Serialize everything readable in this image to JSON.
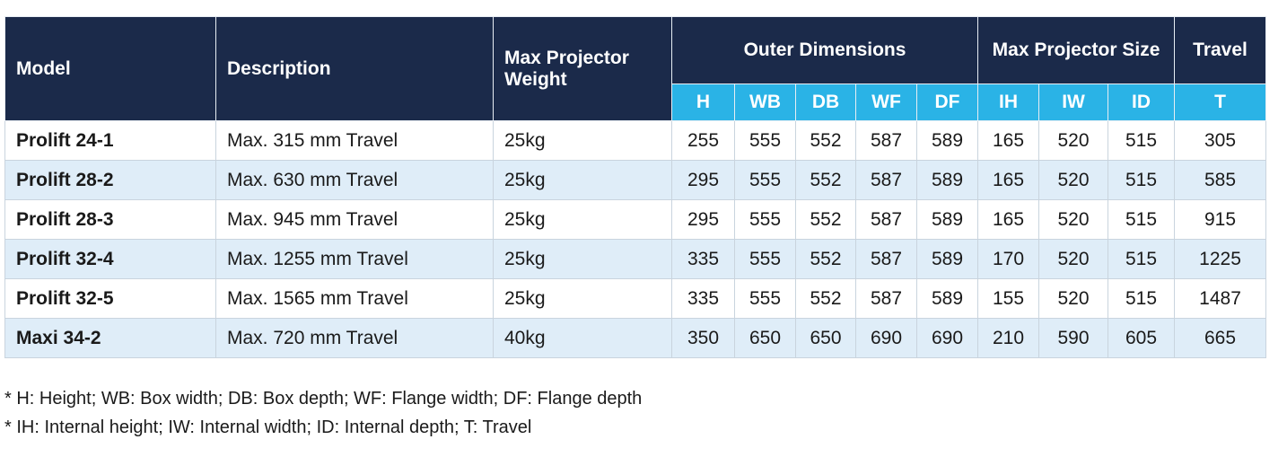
{
  "table": {
    "headers": {
      "model": "Model",
      "description": "Description",
      "weight": "Max Projector Weight",
      "outer": "Outer Dimensions",
      "size": "Max Projector Size",
      "travel": "Travel",
      "sub": [
        "H",
        "WB",
        "DB",
        "WF",
        "DF",
        "IH",
        "IW",
        "ID",
        "T"
      ]
    },
    "rows": [
      [
        "Prolift 24-1",
        "Max. 315 mm Travel",
        "25kg",
        255,
        555,
        552,
        587,
        589,
        165,
        520,
        515,
        305
      ],
      [
        "Prolift 28-2",
        "Max. 630 mm Travel",
        "25kg",
        295,
        555,
        552,
        587,
        589,
        165,
        520,
        515,
        585
      ],
      [
        "Prolift 28-3",
        "Max. 945 mm Travel",
        "25kg",
        295,
        555,
        552,
        587,
        589,
        165,
        520,
        515,
        915
      ],
      [
        "Prolift 32-4",
        "Max. 1255 mm Travel",
        "25kg",
        335,
        555,
        552,
        587,
        589,
        170,
        520,
        515,
        1225
      ],
      [
        "Prolift 32-5",
        "Max. 1565 mm Travel",
        "25kg",
        335,
        555,
        552,
        587,
        589,
        155,
        520,
        515,
        1487
      ],
      [
        "Maxi 34-2",
        "Max. 720 mm Travel",
        "40kg",
        350,
        650,
        650,
        690,
        690,
        210,
        590,
        605,
        665
      ]
    ]
  },
  "footnotes": [
    "* H: Height; WB: Box width; DB: Box depth; WF: Flange width; DF: Flange depth",
    "* IH: Internal height; IW: Internal width; ID: Internal depth; T: Travel"
  ]
}
